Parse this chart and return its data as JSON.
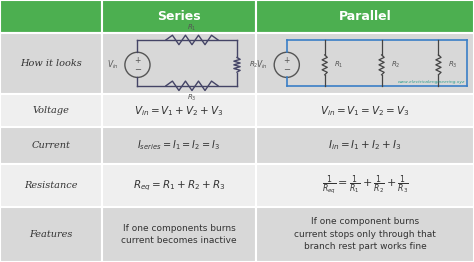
{
  "green_color": "#4CAF50",
  "row_bg_light": "#D8D8D8",
  "row_bg_white": "#EFEFEF",
  "col_headers": [
    "Series",
    "Parallel"
  ],
  "row_labels": [
    "How it looks",
    "Voltage",
    "Current",
    "Resistance",
    "Features"
  ],
  "series_voltage": "$V_{in} = V_1 + V_2 + V_3$",
  "parallel_voltage": "$V_{in} = V_1 = V_2 = V_3$",
  "series_current": "$I_{series} = I_1 = I_2 = I_3$",
  "parallel_current": "$I_{in} = I_1 + I_2 + I_3$",
  "series_resistance": "$R_{eq} = R_1 + R_2 + R_3$",
  "parallel_resistance": "$\\frac{1}{R_{eq}} = \\frac{1}{R_1} + \\frac{1}{R_2} + \\frac{1}{R_3}$",
  "series_features": "If one components burns\ncurrent becomes inactive",
  "parallel_features": "If one component burns\ncurrent stops only through that\nbranch rest part works fine",
  "col_bounds": [
    0.0,
    0.215,
    0.54,
    1.0
  ],
  "row_bounds": [
    1.0,
    0.875,
    0.64,
    0.515,
    0.375,
    0.21,
    0.0
  ],
  "fig_width": 4.74,
  "fig_height": 2.62,
  "dpi": 100
}
